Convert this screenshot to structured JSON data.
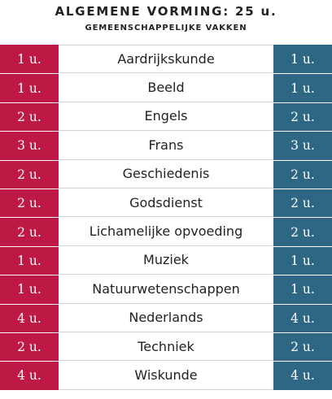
{
  "header": {
    "title": "ALGEMENE VORMING: 25 u.",
    "subtitle": "GEMEENSCHAPPELIJKE VAKKEN"
  },
  "colors": {
    "left_column": "#be1944",
    "right_column": "#2d6784"
  },
  "rows": [
    {
      "left": "1 u.",
      "name": "Aardrijkskunde",
      "right": "1 u."
    },
    {
      "left": "1 u.",
      "name": "Beeld",
      "right": "1 u."
    },
    {
      "left": "2 u.",
      "name": "Engels",
      "right": "2 u."
    },
    {
      "left": "3 u.",
      "name": "Frans",
      "right": "3 u."
    },
    {
      "left": "2 u.",
      "name": "Geschiedenis",
      "right": "2 u."
    },
    {
      "left": "2 u.",
      "name": "Godsdienst",
      "right": "2 u."
    },
    {
      "left": "2 u.",
      "name": "Lichamelijke opvoeding",
      "right": "2 u."
    },
    {
      "left": "1 u.",
      "name": "Muziek",
      "right": "1 u."
    },
    {
      "left": "1 u.",
      "name": "Natuurwetenschappen",
      "right": "1 u."
    },
    {
      "left": "4 u.",
      "name": "Nederlands",
      "right": "4 u."
    },
    {
      "left": "2 u.",
      "name": "Techniek",
      "right": "2 u."
    },
    {
      "left": "4 u.",
      "name": "Wiskunde",
      "right": "4 u."
    }
  ]
}
